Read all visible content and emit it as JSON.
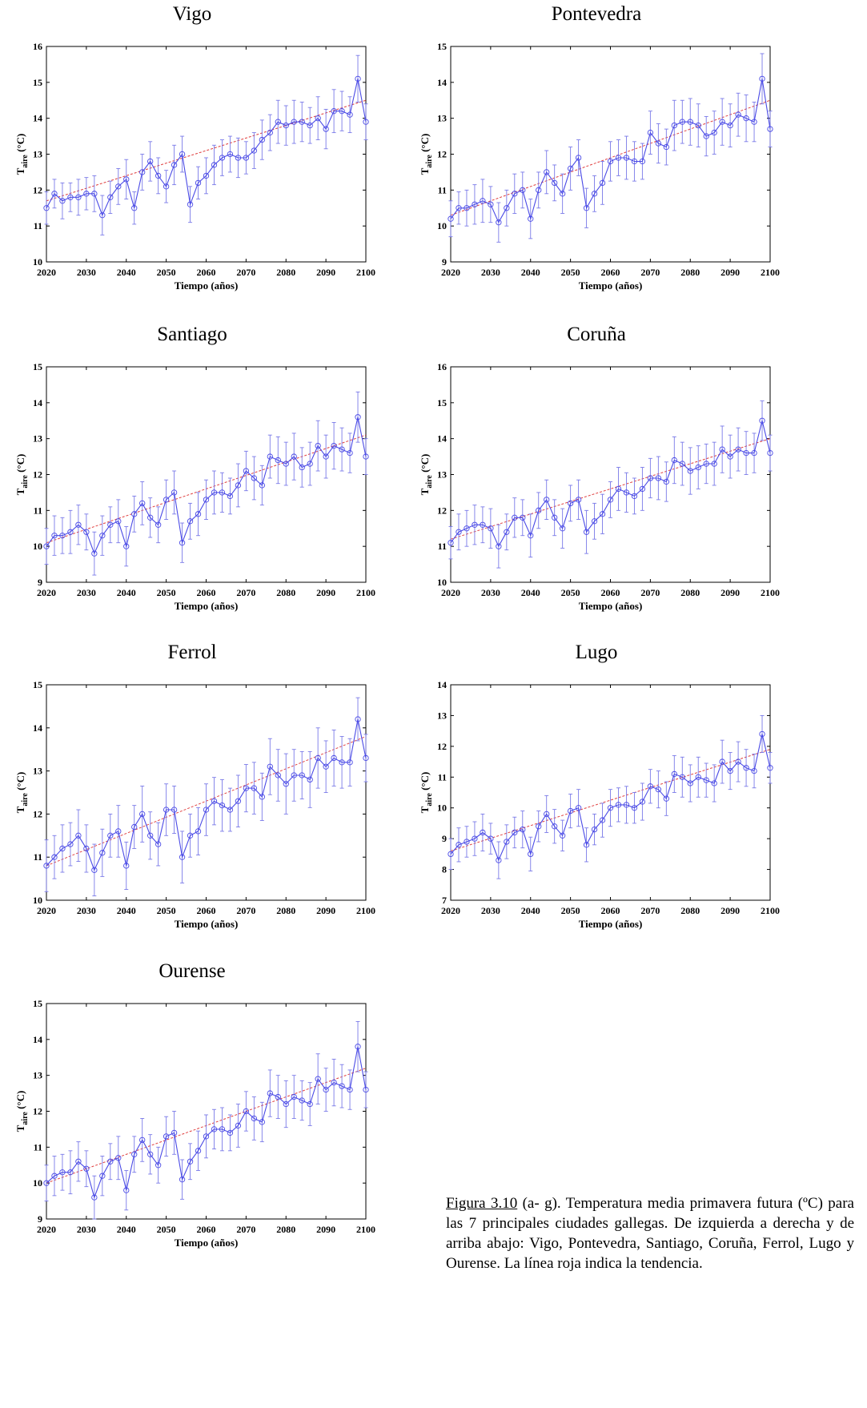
{
  "caption": {
    "figure_ref": "Figura 3.10",
    "text": " (a- g). Temperatura media primavera futura (ºC) para las 7 principales ciudades gallegas. De izquierda a derecha y de arriba abajo: Vigo, Pontevedra, Santiago, Coruña, Ferrol, Lugo y Ourense. La línea roja indica la tendencia."
  },
  "colors": {
    "series": "#4a4ae6",
    "trend": "#e04040",
    "axis": "#000000",
    "errorbar": "#7a7ae8"
  },
  "chart_data": [
    {
      "type": "line",
      "title": "Vigo",
      "xlabel": "Tiempo (años)",
      "ylabel_main": "T",
      "ylabel_sub": "aire",
      "ylabel_unit": " (°C)",
      "xlim": [
        2020,
        2100
      ],
      "ylim": [
        10,
        16
      ],
      "xticks": [
        2020,
        2030,
        2040,
        2050,
        2060,
        2070,
        2080,
        2090,
        2100
      ],
      "yticks": [
        10,
        11,
        12,
        13,
        14,
        15,
        16
      ],
      "x_start": 2020,
      "x_step": 2,
      "series": [
        {
          "values": [
            11.5,
            11.9,
            11.7,
            11.8,
            11.8,
            11.9,
            11.9,
            11.3,
            11.8,
            12.1,
            12.3,
            11.5,
            12.5,
            12.8,
            12.4,
            12.1,
            12.7,
            13.0,
            11.6,
            12.2,
            12.4,
            12.7,
            12.9,
            13.0,
            12.9,
            12.9,
            13.1,
            13.4,
            13.6,
            13.9,
            13.8,
            13.9,
            13.9,
            13.8,
            14.0,
            13.7,
            14.2,
            14.2,
            14.1,
            15.1,
            13.9
          ],
          "errors": [
            0.45,
            0.4,
            0.5,
            0.4,
            0.5,
            0.45,
            0.5,
            0.55,
            0.45,
            0.5,
            0.55,
            0.45,
            0.5,
            0.55,
            0.5,
            0.45,
            0.55,
            0.5,
            0.5,
            0.45,
            0.5,
            0.55,
            0.5,
            0.5,
            0.55,
            0.45,
            0.5,
            0.55,
            0.5,
            0.6,
            0.55,
            0.6,
            0.55,
            0.5,
            0.6,
            0.55,
            0.6,
            0.55,
            0.5,
            0.65,
            0.5
          ]
        }
      ],
      "trend": [
        11.7,
        14.5
      ]
    },
    {
      "type": "line",
      "title": "Pontevedra",
      "xlabel": "Tiempo (años)",
      "ylabel_main": "T",
      "ylabel_sub": "aire",
      "ylabel_unit": " (°C)",
      "xlim": [
        2020,
        2100
      ],
      "ylim": [
        9,
        15
      ],
      "xticks": [
        2020,
        2030,
        2040,
        2050,
        2060,
        2070,
        2080,
        2090,
        2100
      ],
      "yticks": [
        9,
        10,
        11,
        12,
        13,
        14,
        15
      ],
      "x_start": 2020,
      "x_step": 2,
      "series": [
        {
          "values": [
            10.2,
            10.5,
            10.5,
            10.6,
            10.7,
            10.6,
            10.1,
            10.5,
            10.9,
            11.0,
            10.2,
            11.0,
            11.5,
            11.2,
            10.9,
            11.6,
            11.9,
            10.5,
            10.9,
            11.2,
            11.8,
            11.9,
            11.9,
            11.8,
            11.8,
            12.6,
            12.3,
            12.2,
            12.8,
            12.9,
            12.9,
            12.8,
            12.5,
            12.6,
            12.9,
            12.8,
            13.1,
            13.0,
            12.9,
            14.1,
            12.7
          ],
          "errors": [
            0.5,
            0.45,
            0.5,
            0.55,
            0.6,
            0.5,
            0.55,
            0.5,
            0.55,
            0.5,
            0.55,
            0.5,
            0.6,
            0.5,
            0.55,
            0.6,
            0.5,
            0.55,
            0.5,
            0.6,
            0.55,
            0.5,
            0.6,
            0.55,
            0.5,
            0.6,
            0.55,
            0.5,
            0.7,
            0.6,
            0.65,
            0.6,
            0.55,
            0.6,
            0.65,
            0.6,
            0.6,
            0.65,
            0.55,
            0.7,
            0.5
          ]
        }
      ],
      "trend": [
        10.3,
        13.5
      ]
    },
    {
      "type": "line",
      "title": "Santiago",
      "xlabel": "Tiempo (años)",
      "ylabel_main": "T",
      "ylabel_sub": "aire",
      "ylabel_unit": " (°C)",
      "xlim": [
        2020,
        2100
      ],
      "ylim": [
        9,
        15
      ],
      "xticks": [
        2020,
        2030,
        2040,
        2050,
        2060,
        2070,
        2080,
        2090,
        2100
      ],
      "yticks": [
        9,
        10,
        11,
        12,
        13,
        14,
        15
      ],
      "x_start": 2020,
      "x_step": 2,
      "series": [
        {
          "values": [
            10.0,
            10.3,
            10.3,
            10.4,
            10.6,
            10.4,
            9.8,
            10.3,
            10.6,
            10.7,
            10.0,
            10.9,
            11.2,
            10.8,
            10.6,
            11.3,
            11.5,
            10.1,
            10.7,
            10.9,
            11.3,
            11.5,
            11.5,
            11.4,
            11.7,
            12.1,
            11.9,
            11.7,
            12.5,
            12.4,
            12.3,
            12.5,
            12.2,
            12.3,
            12.8,
            12.5,
            12.8,
            12.7,
            12.6,
            13.6,
            12.5
          ],
          "errors": [
            0.5,
            0.55,
            0.5,
            0.6,
            0.55,
            0.5,
            0.6,
            0.55,
            0.5,
            0.6,
            0.55,
            0.5,
            0.6,
            0.55,
            0.5,
            0.55,
            0.6,
            0.55,
            0.5,
            0.6,
            0.55,
            0.6,
            0.55,
            0.5,
            0.6,
            0.55,
            0.6,
            0.55,
            0.6,
            0.65,
            0.6,
            0.65,
            0.55,
            0.6,
            0.7,
            0.6,
            0.65,
            0.6,
            0.55,
            0.7,
            0.5
          ]
        }
      ],
      "trend": [
        10.1,
        13.1
      ]
    },
    {
      "type": "line",
      "title": "Coruña",
      "xlabel": "Tiempo (años)",
      "ylabel_main": "T",
      "ylabel_sub": "aire",
      "ylabel_unit": " (°C)",
      "xlim": [
        2020,
        2100
      ],
      "ylim": [
        10,
        16
      ],
      "xticks": [
        2020,
        2030,
        2040,
        2050,
        2060,
        2070,
        2080,
        2090,
        2100
      ],
      "yticks": [
        10,
        11,
        12,
        13,
        14,
        15,
        16
      ],
      "x_start": 2020,
      "x_step": 2,
      "series": [
        {
          "values": [
            11.1,
            11.4,
            11.5,
            11.6,
            11.6,
            11.5,
            11.0,
            11.4,
            11.8,
            11.8,
            11.3,
            12.0,
            12.3,
            11.8,
            11.5,
            12.2,
            12.3,
            11.4,
            11.7,
            11.9,
            12.3,
            12.6,
            12.5,
            12.4,
            12.6,
            12.9,
            12.9,
            12.8,
            13.4,
            13.3,
            13.1,
            13.2,
            13.3,
            13.3,
            13.7,
            13.5,
            13.7,
            13.6,
            13.6,
            14.5,
            13.6
          ],
          "errors": [
            0.45,
            0.5,
            0.5,
            0.55,
            0.5,
            0.55,
            0.6,
            0.5,
            0.55,
            0.5,
            0.6,
            0.5,
            0.55,
            0.5,
            0.55,
            0.5,
            0.55,
            0.6,
            0.5,
            0.55,
            0.5,
            0.6,
            0.55,
            0.5,
            0.6,
            0.55,
            0.6,
            0.55,
            0.65,
            0.6,
            0.65,
            0.6,
            0.55,
            0.6,
            0.65,
            0.6,
            0.6,
            0.6,
            0.55,
            0.55,
            0.5
          ]
        }
      ],
      "trend": [
        11.2,
        14.0
      ]
    },
    {
      "type": "line",
      "title": "Ferrol",
      "xlabel": "Tiempo (años)",
      "ylabel_main": "T",
      "ylabel_sub": "aire",
      "ylabel_unit": " (°C)",
      "xlim": [
        2020,
        2100
      ],
      "ylim": [
        10,
        15
      ],
      "xticks": [
        2020,
        2030,
        2040,
        2050,
        2060,
        2070,
        2080,
        2090,
        2100
      ],
      "yticks": [
        10,
        11,
        12,
        13,
        14,
        15
      ],
      "x_start": 2020,
      "x_step": 2,
      "series": [
        {
          "values": [
            10.8,
            11.0,
            11.2,
            11.3,
            11.5,
            11.2,
            10.7,
            11.1,
            11.5,
            11.6,
            10.8,
            11.7,
            12.0,
            11.5,
            11.3,
            12.1,
            12.1,
            11.0,
            11.5,
            11.6,
            12.1,
            12.3,
            12.2,
            12.1,
            12.3,
            12.6,
            12.6,
            12.4,
            13.1,
            12.9,
            12.7,
            12.9,
            12.9,
            12.8,
            13.3,
            13.1,
            13.3,
            13.2,
            13.2,
            14.2,
            13.3
          ],
          "errors": [
            0.6,
            0.5,
            0.55,
            0.5,
            0.6,
            0.55,
            0.6,
            0.55,
            0.5,
            0.6,
            0.55,
            0.5,
            0.65,
            0.55,
            0.5,
            0.6,
            0.55,
            0.6,
            0.5,
            0.55,
            0.6,
            0.55,
            0.6,
            0.5,
            0.6,
            0.55,
            0.6,
            0.55,
            0.65,
            0.6,
            0.7,
            0.6,
            0.55,
            0.65,
            0.7,
            0.6,
            0.65,
            0.6,
            0.55,
            0.5,
            0.55
          ]
        }
      ],
      "trend": [
        10.8,
        13.8
      ]
    },
    {
      "type": "line",
      "title": "Lugo",
      "xlabel": "Tiempo (años)",
      "ylabel_main": "T",
      "ylabel_sub": "aire",
      "ylabel_unit": " (°C)",
      "xlim": [
        2020,
        2100
      ],
      "ylim": [
        7,
        14
      ],
      "xticks": [
        2020,
        2030,
        2040,
        2050,
        2060,
        2070,
        2080,
        2090,
        2100
      ],
      "yticks": [
        7,
        8,
        9,
        10,
        11,
        12,
        13,
        14
      ],
      "x_start": 2020,
      "x_step": 2,
      "series": [
        {
          "values": [
            8.5,
            8.8,
            8.9,
            9.0,
            9.2,
            9.0,
            8.3,
            8.9,
            9.2,
            9.3,
            8.5,
            9.4,
            9.8,
            9.4,
            9.1,
            9.9,
            10.0,
            8.8,
            9.3,
            9.6,
            10.0,
            10.1,
            10.1,
            10.0,
            10.2,
            10.7,
            10.6,
            10.3,
            11.1,
            11.0,
            10.8,
            11.0,
            10.9,
            10.8,
            11.5,
            11.2,
            11.5,
            11.3,
            11.2,
            12.4,
            11.3
          ],
          "errors": [
            0.5,
            0.55,
            0.5,
            0.55,
            0.6,
            0.5,
            0.6,
            0.55,
            0.5,
            0.6,
            0.55,
            0.5,
            0.6,
            0.55,
            0.5,
            0.55,
            0.6,
            0.55,
            0.5,
            0.55,
            0.6,
            0.55,
            0.6,
            0.5,
            0.6,
            0.55,
            0.6,
            0.55,
            0.6,
            0.65,
            0.6,
            0.65,
            0.55,
            0.6,
            0.7,
            0.6,
            0.65,
            0.6,
            0.55,
            0.6,
            0.5
          ]
        }
      ],
      "trend": [
        8.6,
        11.9
      ]
    },
    {
      "type": "line",
      "title": "Ourense",
      "xlabel": "Tiempo (años)",
      "ylabel_main": "T",
      "ylabel_sub": "aire",
      "ylabel_unit": " (°C)",
      "xlim": [
        2020,
        2100
      ],
      "ylim": [
        9,
        15
      ],
      "xticks": [
        2020,
        2030,
        2040,
        2050,
        2060,
        2070,
        2080,
        2090,
        2100
      ],
      "yticks": [
        9,
        10,
        11,
        12,
        13,
        14,
        15
      ],
      "x_start": 2020,
      "x_step": 2,
      "series": [
        {
          "values": [
            10.0,
            10.2,
            10.3,
            10.3,
            10.6,
            10.4,
            9.6,
            10.2,
            10.6,
            10.7,
            9.8,
            10.8,
            11.2,
            10.8,
            10.5,
            11.3,
            11.4,
            10.1,
            10.6,
            10.9,
            11.3,
            11.5,
            11.5,
            11.4,
            11.6,
            12.0,
            11.8,
            11.7,
            12.5,
            12.4,
            12.2,
            12.4,
            12.3,
            12.2,
            12.9,
            12.6,
            12.8,
            12.7,
            12.6,
            13.8,
            12.6
          ],
          "errors": [
            0.5,
            0.55,
            0.5,
            0.6,
            0.55,
            0.5,
            0.6,
            0.55,
            0.5,
            0.6,
            0.55,
            0.5,
            0.6,
            0.55,
            0.5,
            0.55,
            0.6,
            0.55,
            0.5,
            0.55,
            0.6,
            0.55,
            0.6,
            0.5,
            0.6,
            0.55,
            0.6,
            0.55,
            0.65,
            0.6,
            0.65,
            0.6,
            0.55,
            0.6,
            0.7,
            0.6,
            0.65,
            0.6,
            0.55,
            0.7,
            0.5
          ]
        }
      ],
      "trend": [
        10.0,
        13.2
      ]
    }
  ]
}
